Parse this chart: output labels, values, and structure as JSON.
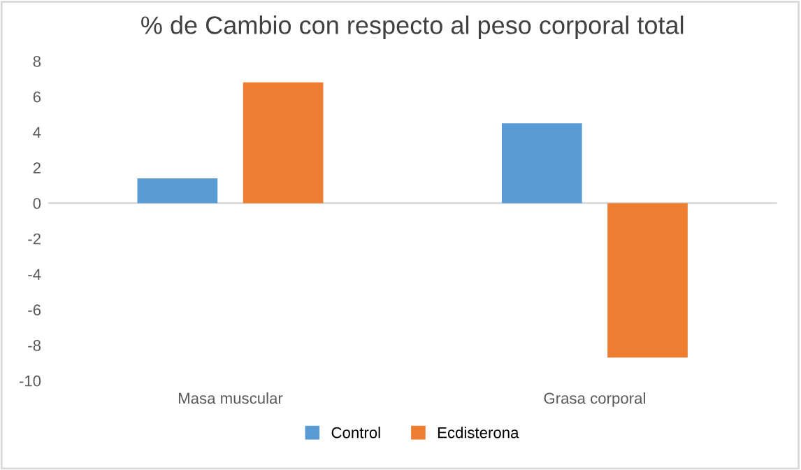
{
  "chart_data": {
    "type": "bar",
    "title": "% de Cambio con respecto al peso corporal total",
    "categories": [
      "Masa muscular",
      "Grasa corporal"
    ],
    "series": [
      {
        "name": "Control",
        "color": "#5b9bd5",
        "values": [
          1.4,
          4.5
        ]
      },
      {
        "name": "Ecdisterona",
        "color": "#ed7d31",
        "values": [
          6.8,
          -8.7
        ]
      }
    ],
    "ylim": [
      -10,
      8
    ],
    "yticks": [
      -10,
      -8,
      -6,
      -4,
      -2,
      0,
      2,
      4,
      6,
      8
    ],
    "grid": false,
    "ref_lines": [
      {
        "axis": "y",
        "value": 0,
        "color": "#d9d9d9"
      }
    ],
    "legend": "bottom"
  }
}
